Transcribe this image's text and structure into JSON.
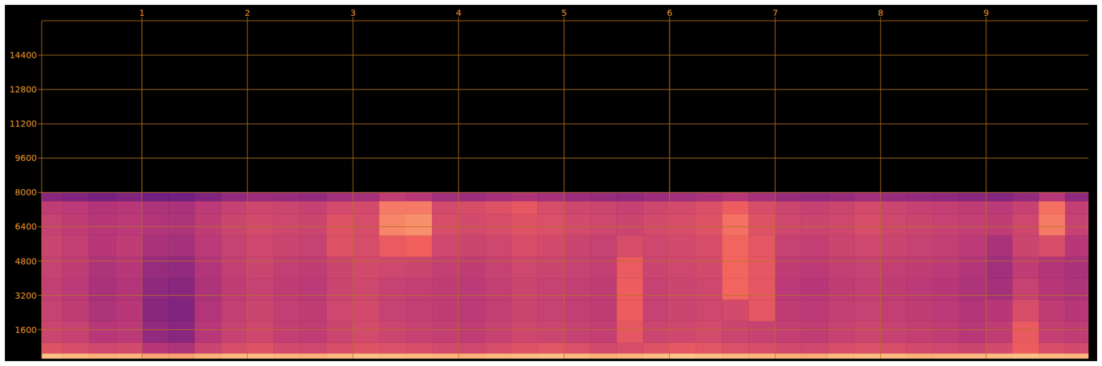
{
  "chart_data": {
    "type": "heatmap",
    "x_bins": [
      0,
      0.25,
      0.5,
      0.75,
      1,
      1.25,
      1.5,
      1.75,
      2,
      2.25,
      2.5,
      2.75,
      3,
      3.25,
      3.5,
      3.75,
      4,
      4.25,
      4.5,
      4.75,
      5,
      5.25,
      5.5,
      5.75,
      6,
      6.25,
      6.5,
      6.75,
      7,
      7.25,
      7.5,
      7.75,
      8,
      8.25,
      8.5,
      8.75,
      9,
      9.25,
      9.5,
      9.75,
      10
    ],
    "y_bins": [
      0,
      500,
      1000,
      2000,
      3000,
      4000,
      5000,
      6000,
      7000,
      7600,
      8000
    ],
    "cells": [
      [
        84,
        82,
        80,
        81,
        78,
        77,
        80,
        82,
        83,
        81,
        80,
        82,
        84,
        83,
        82,
        81,
        80,
        82,
        83,
        84,
        82,
        80,
        81,
        83,
        85,
        84,
        82,
        81,
        80,
        79,
        82,
        83,
        82,
        80,
        81,
        82,
        83,
        84,
        82,
        81
      ],
      [
        60,
        58,
        56,
        57,
        50,
        48,
        55,
        58,
        60,
        57,
        56,
        58,
        60,
        59,
        58,
        57,
        56,
        58,
        60,
        61,
        59,
        57,
        58,
        60,
        62,
        61,
        59,
        58,
        57,
        56,
        58,
        59,
        58,
        57,
        56,
        55,
        57,
        64,
        58,
        57
      ],
      [
        55,
        54,
        50,
        51,
        42,
        40,
        50,
        54,
        56,
        53,
        52,
        55,
        57,
        55,
        54,
        53,
        52,
        54,
        56,
        55,
        54,
        53,
        62,
        55,
        56,
        57,
        55,
        54,
        53,
        52,
        54,
        55,
        54,
        53,
        52,
        50,
        52,
        63,
        53,
        52
      ],
      [
        54,
        52,
        48,
        50,
        40,
        38,
        49,
        53,
        55,
        53,
        52,
        56,
        57,
        54,
        53,
        52,
        51,
        53,
        55,
        54,
        53,
        52,
        64,
        54,
        55,
        56,
        57,
        62,
        52,
        51,
        53,
        54,
        53,
        52,
        51,
        49,
        50,
        58,
        52,
        50
      ],
      [
        53,
        51,
        47,
        49,
        41,
        40,
        48,
        52,
        54,
        52,
        51,
        55,
        56,
        54,
        53,
        52,
        51,
        53,
        55,
        54,
        53,
        52,
        64,
        54,
        55,
        56,
        66,
        62,
        51,
        50,
        52,
        53,
        52,
        51,
        50,
        48,
        46,
        54,
        50,
        48
      ],
      [
        54,
        52,
        48,
        50,
        43,
        42,
        49,
        53,
        55,
        53,
        52,
        55,
        57,
        56,
        55,
        53,
        52,
        54,
        56,
        55,
        54,
        53,
        63,
        55,
        56,
        57,
        66,
        62,
        52,
        51,
        53,
        54,
        53,
        52,
        51,
        49,
        45,
        52,
        49,
        47
      ],
      [
        55,
        53,
        50,
        52,
        47,
        46,
        51,
        54,
        56,
        55,
        54,
        60,
        58,
        63,
        65,
        56,
        55,
        56,
        58,
        57,
        55,
        54,
        58,
        56,
        57,
        58,
        66,
        62,
        54,
        53,
        55,
        56,
        55,
        54,
        53,
        51,
        47,
        55,
        58,
        50
      ],
      [
        54,
        52,
        50,
        51,
        49,
        48,
        52,
        55,
        57,
        56,
        55,
        60,
        58,
        72,
        74,
        58,
        57,
        58,
        60,
        59,
        57,
        56,
        55,
        57,
        58,
        60,
        68,
        60,
        56,
        55,
        56,
        58,
        56,
        55,
        54,
        53,
        52,
        56,
        70,
        54
      ],
      [
        52,
        51,
        49,
        50,
        48,
        47,
        51,
        54,
        56,
        55,
        54,
        57,
        57,
        70,
        70,
        57,
        58,
        60,
        62,
        58,
        56,
        55,
        54,
        56,
        57,
        59,
        64,
        58,
        55,
        54,
        55,
        57,
        55,
        54,
        53,
        52,
        51,
        54,
        68,
        53
      ],
      [
        40,
        38,
        36,
        38,
        35,
        35,
        38,
        42,
        44,
        43,
        42,
        45,
        46,
        52,
        50,
        45,
        44,
        46,
        48,
        46,
        44,
        43,
        42,
        44,
        45,
        47,
        50,
        46,
        43,
        42,
        43,
        45,
        43,
        42,
        41,
        40,
        39,
        42,
        50,
        41
      ]
    ],
    "zlim": [
      0,
      100
    ],
    "xlim": [
      0.05,
      9.97
    ],
    "ylim": [
      250,
      16000
    ],
    "xticks": [
      1,
      2,
      3,
      4,
      5,
      6,
      7,
      8,
      9
    ],
    "yticks": [
      1600,
      3200,
      4800,
      6400,
      8000,
      9600,
      11200,
      12800,
      14400
    ],
    "grid": true
  }
}
